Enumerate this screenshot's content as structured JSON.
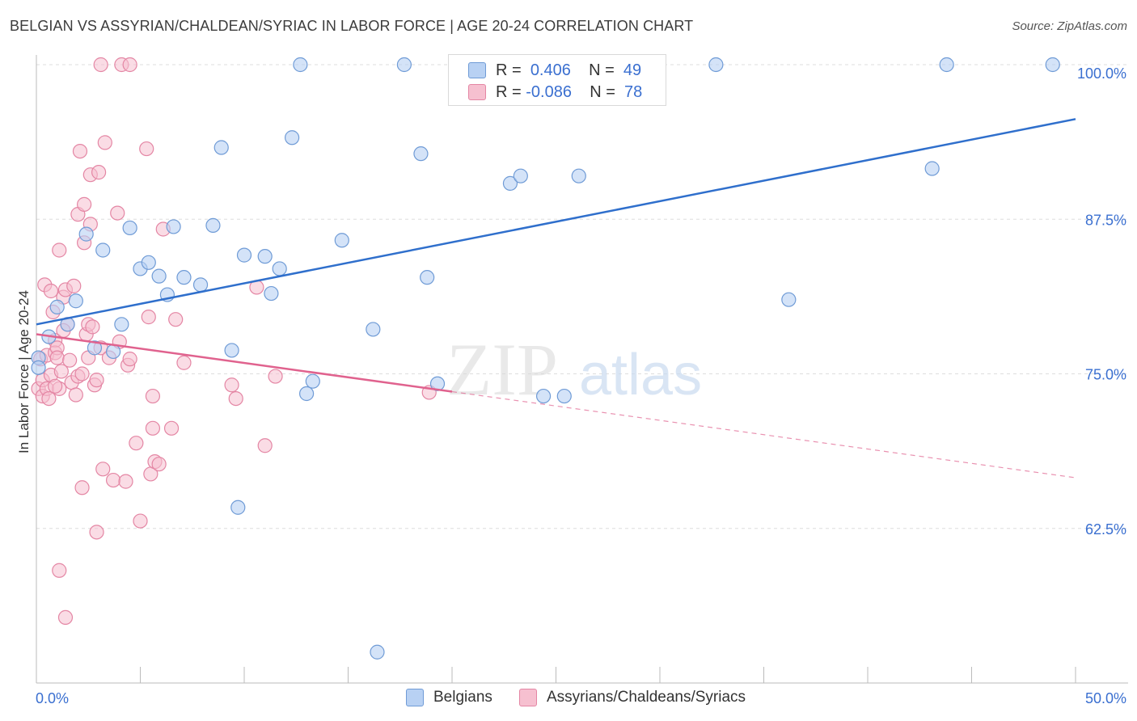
{
  "header": {
    "title": "BELGIAN VS ASSYRIAN/CHALDEAN/SYRIAC IN LABOR FORCE | AGE 20-24 CORRELATION CHART",
    "source": "Source: ZipAtlas.com"
  },
  "watermark": {
    "zip": "ZIP",
    "atlas": "atlas"
  },
  "legend_top": {
    "rows": [
      {
        "r_label": "R =",
        "r_value": "0.406",
        "n_label": "N =",
        "n_value": "49"
      },
      {
        "r_label": "R =",
        "r_value": "-0.086",
        "n_label": "N =",
        "n_value": "78"
      }
    ]
  },
  "legend_bottom": {
    "series1": "Belgians",
    "series2": "Assyrians/Chaldeans/Syriacs"
  },
  "colors": {
    "blue_fill": "#b8d1f3",
    "blue_stroke": "#6f9bd6",
    "blue_line": "#2f6fcc",
    "pink_fill": "#f6c0d0",
    "pink_stroke": "#e486a4",
    "pink_line": "#e0628e",
    "axis_text": "#3a6fd0",
    "grid": "#dddddd"
  },
  "chart_data": {
    "type": "scatter",
    "title": "BELGIAN VS ASSYRIAN/CHALDEAN/SYRIAC IN LABOR FORCE | AGE 20-24 CORRELATION CHART",
    "xlabel": "",
    "ylabel": "In Labor Force | Age 20-24",
    "xlim": [
      0,
      50
    ],
    "ylim": [
      52.0,
      101.0
    ],
    "x_tick_labels": [
      "0.0%",
      "50.0%"
    ],
    "y_ticks": [
      62.5,
      75.0,
      87.5,
      100.0
    ],
    "y_tick_labels": [
      "62.5%",
      "75.0%",
      "87.5%",
      "100.0%"
    ],
    "grid": true,
    "legend_position": "bottom",
    "series": [
      {
        "name": "Belgians",
        "r": 0.406,
        "n": 49,
        "trend": {
          "x": [
            0,
            50
          ],
          "y": [
            79.0,
            95.6
          ]
        },
        "points": [
          [
            0.1,
            76.3
          ],
          [
            0.6,
            78.0
          ],
          [
            1.0,
            80.4
          ],
          [
            1.5,
            79.0
          ],
          [
            1.9,
            80.9
          ],
          [
            2.4,
            86.3
          ],
          [
            2.8,
            77.1
          ],
          [
            3.2,
            85.0
          ],
          [
            3.7,
            76.8
          ],
          [
            4.1,
            79.0
          ],
          [
            4.5,
            86.8
          ],
          [
            5.0,
            83.5
          ],
          [
            5.4,
            84.0
          ],
          [
            5.9,
            82.9
          ],
          [
            6.3,
            81.4
          ],
          [
            6.6,
            86.9
          ],
          [
            7.1,
            82.8
          ],
          [
            7.9,
            82.2
          ],
          [
            8.5,
            87.0
          ],
          [
            8.9,
            93.3
          ],
          [
            9.4,
            76.9
          ],
          [
            9.7,
            64.2
          ],
          [
            10.0,
            84.6
          ],
          [
            11.0,
            84.5
          ],
          [
            11.3,
            81.5
          ],
          [
            11.7,
            83.5
          ],
          [
            12.3,
            94.1
          ],
          [
            12.7,
            100.0
          ],
          [
            13.0,
            73.4
          ],
          [
            13.3,
            74.4
          ],
          [
            14.7,
            85.8
          ],
          [
            16.2,
            78.6
          ],
          [
            16.4,
            52.5
          ],
          [
            17.7,
            100.0
          ],
          [
            18.5,
            92.8
          ],
          [
            18.8,
            82.8
          ],
          [
            19.3,
            74.2
          ],
          [
            22.8,
            90.4
          ],
          [
            23.3,
            91.0
          ],
          [
            24.4,
            73.2
          ],
          [
            25.4,
            73.2
          ],
          [
            26.1,
            91.0
          ],
          [
            28.0,
            100.0
          ],
          [
            32.7,
            100.0
          ],
          [
            36.2,
            81.0
          ],
          [
            43.1,
            91.6
          ],
          [
            43.8,
            100.0
          ],
          [
            48.9,
            100.0
          ],
          [
            0.1,
            75.5
          ]
        ]
      },
      {
        "name": "Assyrians/Chaldeans/Syriacs",
        "r": -0.086,
        "n": 78,
        "trend": {
          "x": [
            0,
            50
          ],
          "y": [
            78.2,
            66.6
          ]
        },
        "trend_solid_until_x": 20,
        "points": [
          [
            0.1,
            73.8
          ],
          [
            0.2,
            76.2
          ],
          [
            0.3,
            74.5
          ],
          [
            0.3,
            73.2
          ],
          [
            0.4,
            82.2
          ],
          [
            0.5,
            76.5
          ],
          [
            0.5,
            73.8
          ],
          [
            0.7,
            74.9
          ],
          [
            0.7,
            81.7
          ],
          [
            0.8,
            80.0
          ],
          [
            0.9,
            77.7
          ],
          [
            0.9,
            76.7
          ],
          [
            1.0,
            77.1
          ],
          [
            1.0,
            76.3
          ],
          [
            1.1,
            85.0
          ],
          [
            1.1,
            73.8
          ],
          [
            1.2,
            75.2
          ],
          [
            1.3,
            81.2
          ],
          [
            1.4,
            81.8
          ],
          [
            1.5,
            79.0
          ],
          [
            1.6,
            76.1
          ],
          [
            1.7,
            74.3
          ],
          [
            1.8,
            82.1
          ],
          [
            1.9,
            73.3
          ],
          [
            2.0,
            87.9
          ],
          [
            2.0,
            74.8
          ],
          [
            2.1,
            93.0
          ],
          [
            2.2,
            65.8
          ],
          [
            2.3,
            88.7
          ],
          [
            2.3,
            85.6
          ],
          [
            2.4,
            78.2
          ],
          [
            2.5,
            79.0
          ],
          [
            2.5,
            76.3
          ],
          [
            2.6,
            91.1
          ],
          [
            2.6,
            87.1
          ],
          [
            2.7,
            78.8
          ],
          [
            2.8,
            74.1
          ],
          [
            2.9,
            74.5
          ],
          [
            2.9,
            62.2
          ],
          [
            3.0,
            91.3
          ],
          [
            3.1,
            77.1
          ],
          [
            3.1,
            100.0
          ],
          [
            3.2,
            67.3
          ],
          [
            3.3,
            93.7
          ],
          [
            3.5,
            76.3
          ],
          [
            3.7,
            66.4
          ],
          [
            3.9,
            88.0
          ],
          [
            4.0,
            77.6
          ],
          [
            4.1,
            100.0
          ],
          [
            4.3,
            66.3
          ],
          [
            4.4,
            75.7
          ],
          [
            4.5,
            76.2
          ],
          [
            4.5,
            100.0
          ],
          [
            4.8,
            69.4
          ],
          [
            5.0,
            63.1
          ],
          [
            5.3,
            93.2
          ],
          [
            5.4,
            79.6
          ],
          [
            5.5,
            66.9
          ],
          [
            5.6,
            73.2
          ],
          [
            5.6,
            70.6
          ],
          [
            5.7,
            67.9
          ],
          [
            5.9,
            67.7
          ],
          [
            6.1,
            86.7
          ],
          [
            6.5,
            70.6
          ],
          [
            6.7,
            79.4
          ],
          [
            7.1,
            75.9
          ],
          [
            9.4,
            74.1
          ],
          [
            9.6,
            73.0
          ],
          [
            10.6,
            82.0
          ],
          [
            11.0,
            69.2
          ],
          [
            11.5,
            74.8
          ],
          [
            18.9,
            73.5
          ],
          [
            1.1,
            59.1
          ],
          [
            1.4,
            55.3
          ],
          [
            0.9,
            74.0
          ],
          [
            1.3,
            78.5
          ],
          [
            2.2,
            75.0
          ],
          [
            0.6,
            73.0
          ]
        ]
      }
    ]
  }
}
